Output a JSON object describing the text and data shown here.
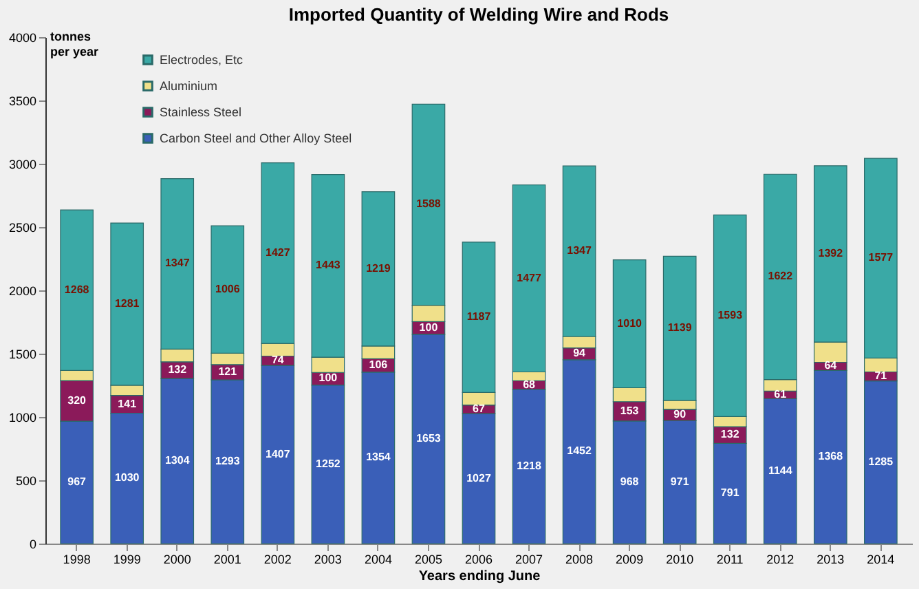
{
  "chart_data": {
    "type": "bar",
    "stacked": true,
    "title": "Imported Quantity of Welding Wire and Rods",
    "xlabel": "Years ending June",
    "ylabel": "tonnes\nper year",
    "categories": [
      "1998",
      "1999",
      "2000",
      "2001",
      "2002",
      "2003",
      "2004",
      "2005",
      "2006",
      "2007",
      "2008",
      "2009",
      "2010",
      "2011",
      "2012",
      "2013",
      "2014"
    ],
    "ylim": [
      0,
      4000
    ],
    "yticks": [
      0,
      500,
      1000,
      1500,
      2000,
      2500,
      3000,
      3500,
      4000
    ],
    "grid": false,
    "legend": "top left",
    "series": [
      {
        "name": "Carbon Steel and Other Alloy Steel",
        "color": "#3a5fb8",
        "values": [
          967,
          1030,
          1304,
          1293,
          1407,
          1252,
          1354,
          1653,
          1027,
          1218,
          1452,
          968,
          971,
          791,
          1144,
          1368,
          1285
        ],
        "value_labels": [
          "967",
          "1030",
          "1304",
          "1293",
          "1407",
          "1252",
          "1354",
          "1653",
          "1027",
          "1218",
          "1452",
          "968",
          "971",
          "791",
          "1144",
          "1368",
          "1285"
        ]
      },
      {
        "name": "Stainless Steel",
        "color": "#8b1a5a",
        "values": [
          320,
          141,
          132,
          121,
          74,
          100,
          106,
          100,
          67,
          68,
          94,
          153,
          90,
          132,
          61,
          64,
          71
        ],
        "value_labels": [
          "320",
          "141",
          "132",
          "121",
          "74",
          "100",
          "106",
          "100",
          "67",
          "68",
          "94",
          "153",
          "90",
          "132",
          "61",
          "64",
          "71"
        ]
      },
      {
        "name": "Aluminium",
        "color": "#f0e08a",
        "values": [
          80,
          80,
          100,
          90,
          100,
          120,
          100,
          130,
          100,
          70,
          90,
          110,
          70,
          80,
          90,
          160,
          110
        ],
        "value_labels": [
          null,
          null,
          null,
          null,
          null,
          null,
          null,
          null,
          null,
          null,
          null,
          null,
          null,
          null,
          null,
          null,
          null
        ]
      },
      {
        "name": "Electrodes, Etc",
        "color": "#3aa9a6",
        "values": [
          1268,
          1281,
          1347,
          1006,
          1427,
          1443,
          1219,
          1588,
          1187,
          1477,
          1347,
          1010,
          1139,
          1593,
          1622,
          1392,
          1577
        ],
        "value_labels": [
          "1268",
          "1281",
          "1347",
          "1006",
          "1427",
          "1443",
          "1219",
          "1588",
          "1187",
          "1477",
          "1347",
          "1010",
          "1139",
          "1593",
          "1622",
          "1392",
          "1577"
        ]
      }
    ]
  }
}
